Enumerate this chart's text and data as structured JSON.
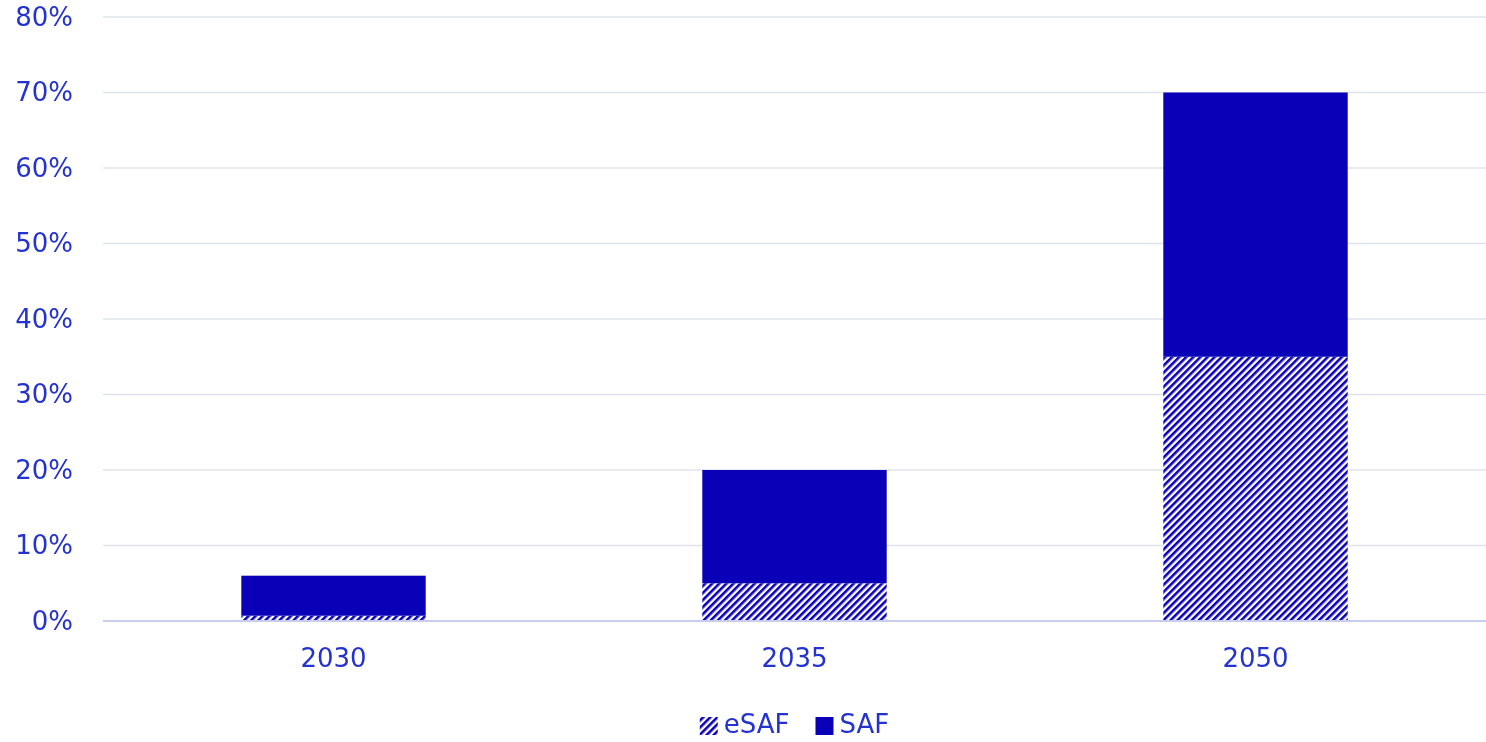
{
  "chart_data": {
    "type": "bar",
    "stacked": true,
    "categories": [
      "2030",
      "2035",
      "2050"
    ],
    "series": [
      {
        "name": "eSAF",
        "color": "#0a00b8",
        "values": [
          0.7,
          5,
          35
        ]
      },
      {
        "name": "SAF",
        "color": "#0a00b8",
        "values": [
          5.3,
          15,
          35
        ]
      }
    ],
    "ylim": [
      0,
      80
    ],
    "yticks": [
      {
        "value": 0,
        "label": "0%"
      },
      {
        "value": 10,
        "label": "10%"
      },
      {
        "value": 20,
        "label": "20%"
      },
      {
        "value": 30,
        "label": "30%"
      },
      {
        "value": 40,
        "label": "40%"
      },
      {
        "value": 50,
        "label": "50%"
      },
      {
        "value": 60,
        "label": "60%"
      },
      {
        "value": 70,
        "label": "70%"
      },
      {
        "value": 80,
        "label": "80%"
      }
    ],
    "grid": "y",
    "legend": "bottom"
  }
}
